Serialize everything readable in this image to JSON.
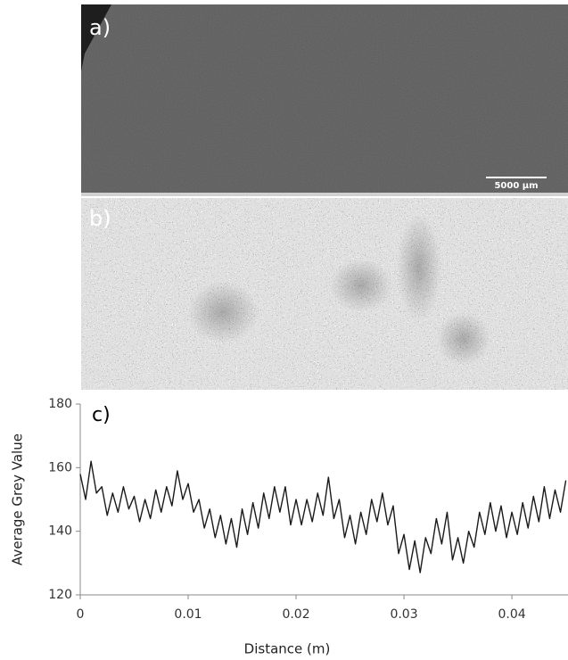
{
  "panels": {
    "a": {
      "label": "a)",
      "scale_bar": "5000 µm"
    },
    "b": {
      "label": "b)"
    }
  },
  "chart_data": {
    "type": "line",
    "annotation": "c)",
    "xlabel": "Distance (m)",
    "ylabel": "Average Grey Value",
    "color": "#1a1a1a",
    "x": [
      0,
      0.0005,
      0.001,
      0.0015,
      0.002,
      0.0025,
      0.003,
      0.0035,
      0.004,
      0.0045,
      0.005,
      0.0055,
      0.006,
      0.0065,
      0.007,
      0.0075,
      0.008,
      0.0085,
      0.009,
      0.0095,
      0.01,
      0.0105,
      0.011,
      0.0115,
      0.012,
      0.0125,
      0.013,
      0.0135,
      0.014,
      0.0145,
      0.015,
      0.0155,
      0.016,
      0.0165,
      0.017,
      0.0175,
      0.018,
      0.0185,
      0.019,
      0.0195,
      0.02,
      0.0205,
      0.021,
      0.0215,
      0.022,
      0.0225,
      0.023,
      0.0235,
      0.024,
      0.0245,
      0.025,
      0.0255,
      0.026,
      0.0265,
      0.027,
      0.0275,
      0.028,
      0.0285,
      0.029,
      0.0295,
      0.03,
      0.0305,
      0.031,
      0.0315,
      0.032,
      0.0325,
      0.033,
      0.0335,
      0.034,
      0.0345,
      0.035,
      0.0355,
      0.036,
      0.0365,
      0.037,
      0.0375,
      0.038,
      0.0385,
      0.039,
      0.0395,
      0.04,
      0.0405,
      0.041,
      0.0415,
      0.042,
      0.0425,
      0.043,
      0.0435,
      0.044,
      0.0445,
      0.045
    ],
    "values": [
      158,
      150,
      162,
      152,
      154,
      145,
      152,
      146,
      154,
      147,
      151,
      143,
      150,
      144,
      153,
      146,
      154,
      148,
      159,
      150,
      155,
      146,
      150,
      141,
      147,
      138,
      145,
      136,
      144,
      135,
      147,
      139,
      149,
      141,
      152,
      144,
      154,
      146,
      154,
      142,
      150,
      142,
      150,
      143,
      152,
      145,
      157,
      144,
      150,
      138,
      145,
      136,
      146,
      139,
      150,
      143,
      152,
      142,
      148,
      133,
      139,
      128,
      137,
      127,
      138,
      133,
      144,
      136,
      146,
      131,
      138,
      130,
      140,
      135,
      146,
      139,
      149,
      140,
      148,
      138,
      146,
      139,
      149,
      141,
      151,
      143,
      154,
      144,
      153,
      146,
      156
    ],
    "xlim": [
      0,
      0.0452
    ],
    "ylim": [
      120,
      180
    ],
    "xticks": [
      0,
      0.01,
      0.02,
      0.03,
      0.04
    ],
    "yticks": [
      120,
      140,
      160,
      180
    ]
  }
}
